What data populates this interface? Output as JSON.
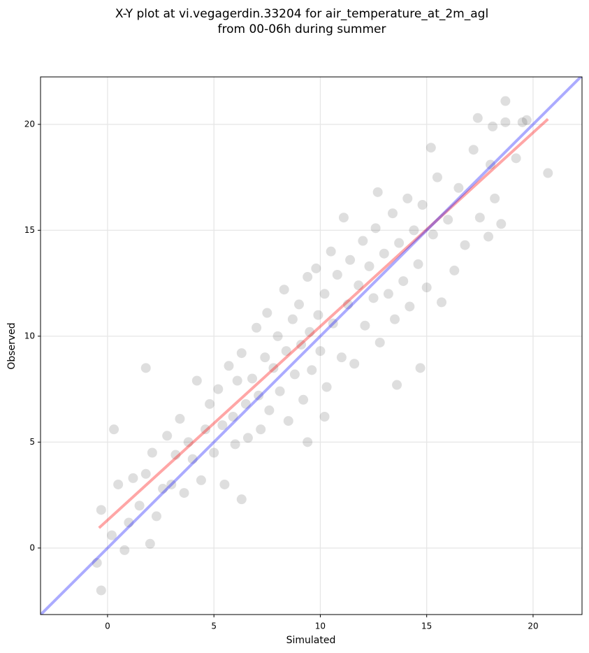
{
  "chart_data": {
    "type": "scatter",
    "title": [
      "X-Y plot at vi.vegagerdin.33204 for air_temperature_at_2m_agl",
      "from 00-06h during summer"
    ],
    "xlabel": "Simulated",
    "ylabel": "Observed",
    "xlim": [
      -3.15,
      22.3
    ],
    "ylim": [
      -3.14,
      22.24
    ],
    "xticks": [
      0,
      5,
      10,
      15,
      20
    ],
    "yticks": [
      0,
      5,
      10,
      15,
      20
    ],
    "grid": true,
    "series": [
      {
        "mode": "points",
        "color": "#000000",
        "opacity": 0.13,
        "x": [
          -0.5,
          -0.3,
          -0.3,
          18.7,
          20.7,
          17.4,
          19.7,
          14.7,
          1.8,
          2.0,
          0.8,
          6.3,
          9.4,
          10.2,
          13.6,
          15.2,
          12.7,
          0.2,
          0.5,
          0.3,
          1.2,
          1.0,
          1.5,
          1.8,
          2.1,
          2.3,
          2.6,
          2.8,
          3.0,
          3.2,
          3.4,
          3.6,
          3.8,
          4.0,
          4.2,
          4.4,
          4.6,
          4.8,
          5.0,
          5.2,
          5.4,
          5.5,
          5.7,
          5.9,
          6.0,
          6.1,
          6.3,
          6.5,
          6.6,
          6.8,
          7.0,
          7.1,
          7.2,
          7.4,
          7.5,
          7.6,
          7.8,
          8.0,
          8.1,
          8.3,
          8.4,
          8.5,
          8.7,
          8.8,
          9.0,
          9.1,
          9.2,
          9.4,
          9.5,
          9.6,
          9.8,
          9.9,
          10.0,
          10.2,
          10.3,
          10.5,
          10.6,
          10.8,
          11.0,
          11.1,
          11.3,
          11.4,
          11.6,
          11.8,
          12.0,
          12.1,
          12.3,
          12.5,
          12.6,
          12.8,
          13.0,
          13.2,
          13.4,
          13.5,
          13.7,
          13.9,
          14.1,
          14.2,
          14.4,
          14.6,
          14.8,
          15.0,
          15.3,
          15.5,
          15.7,
          16.0,
          16.3,
          16.5,
          16.8,
          17.2,
          17.5,
          18.0,
          18.2,
          18.5,
          18.7,
          19.2,
          19.5,
          17.9,
          18.1
        ],
        "values": [
          -0.7,
          -2.0,
          1.8,
          21.1,
          17.7,
          20.3,
          20.2,
          8.5,
          8.5,
          0.2,
          -0.1,
          2.3,
          5.0,
          6.2,
          7.7,
          18.9,
          16.8,
          0.6,
          3.0,
          5.6,
          3.3,
          1.2,
          2.0,
          3.5,
          4.5,
          1.5,
          2.8,
          5.3,
          3.0,
          4.4,
          6.1,
          2.6,
          5.0,
          4.2,
          7.9,
          3.2,
          5.6,
          6.8,
          4.5,
          7.5,
          5.8,
          3.0,
          8.6,
          6.2,
          4.9,
          7.9,
          9.2,
          6.8,
          5.2,
          8.0,
          10.4,
          7.2,
          5.6,
          9.0,
          11.1,
          6.5,
          8.5,
          10.0,
          7.4,
          12.2,
          9.3,
          6.0,
          10.8,
          8.2,
          11.5,
          9.6,
          7.0,
          12.8,
          10.2,
          8.4,
          13.2,
          11.0,
          9.3,
          12.0,
          7.6,
          14.0,
          10.6,
          12.9,
          9.0,
          15.6,
          11.5,
          13.6,
          8.7,
          12.4,
          14.5,
          10.5,
          13.3,
          11.8,
          15.1,
          9.7,
          13.9,
          12.0,
          15.8,
          10.8,
          14.4,
          12.6,
          16.5,
          11.4,
          15.0,
          13.4,
          16.2,
          12.3,
          14.8,
          17.5,
          11.6,
          15.5,
          13.1,
          17.0,
          14.3,
          18.8,
          15.6,
          18.1,
          16.5,
          15.3,
          20.1,
          18.4,
          20.1,
          14.7,
          19.9
        ]
      },
      {
        "mode": "line",
        "color": "#ff0000",
        "opacity": 0.35,
        "x": [
          -0.4,
          20.7
        ],
        "values": [
          0.95,
          20.25
        ]
      },
      {
        "mode": "line",
        "color": "#0000ff",
        "opacity": 0.33,
        "x": [
          -3.15,
          22.3
        ],
        "values": [
          -3.15,
          22.3
        ]
      }
    ]
  }
}
